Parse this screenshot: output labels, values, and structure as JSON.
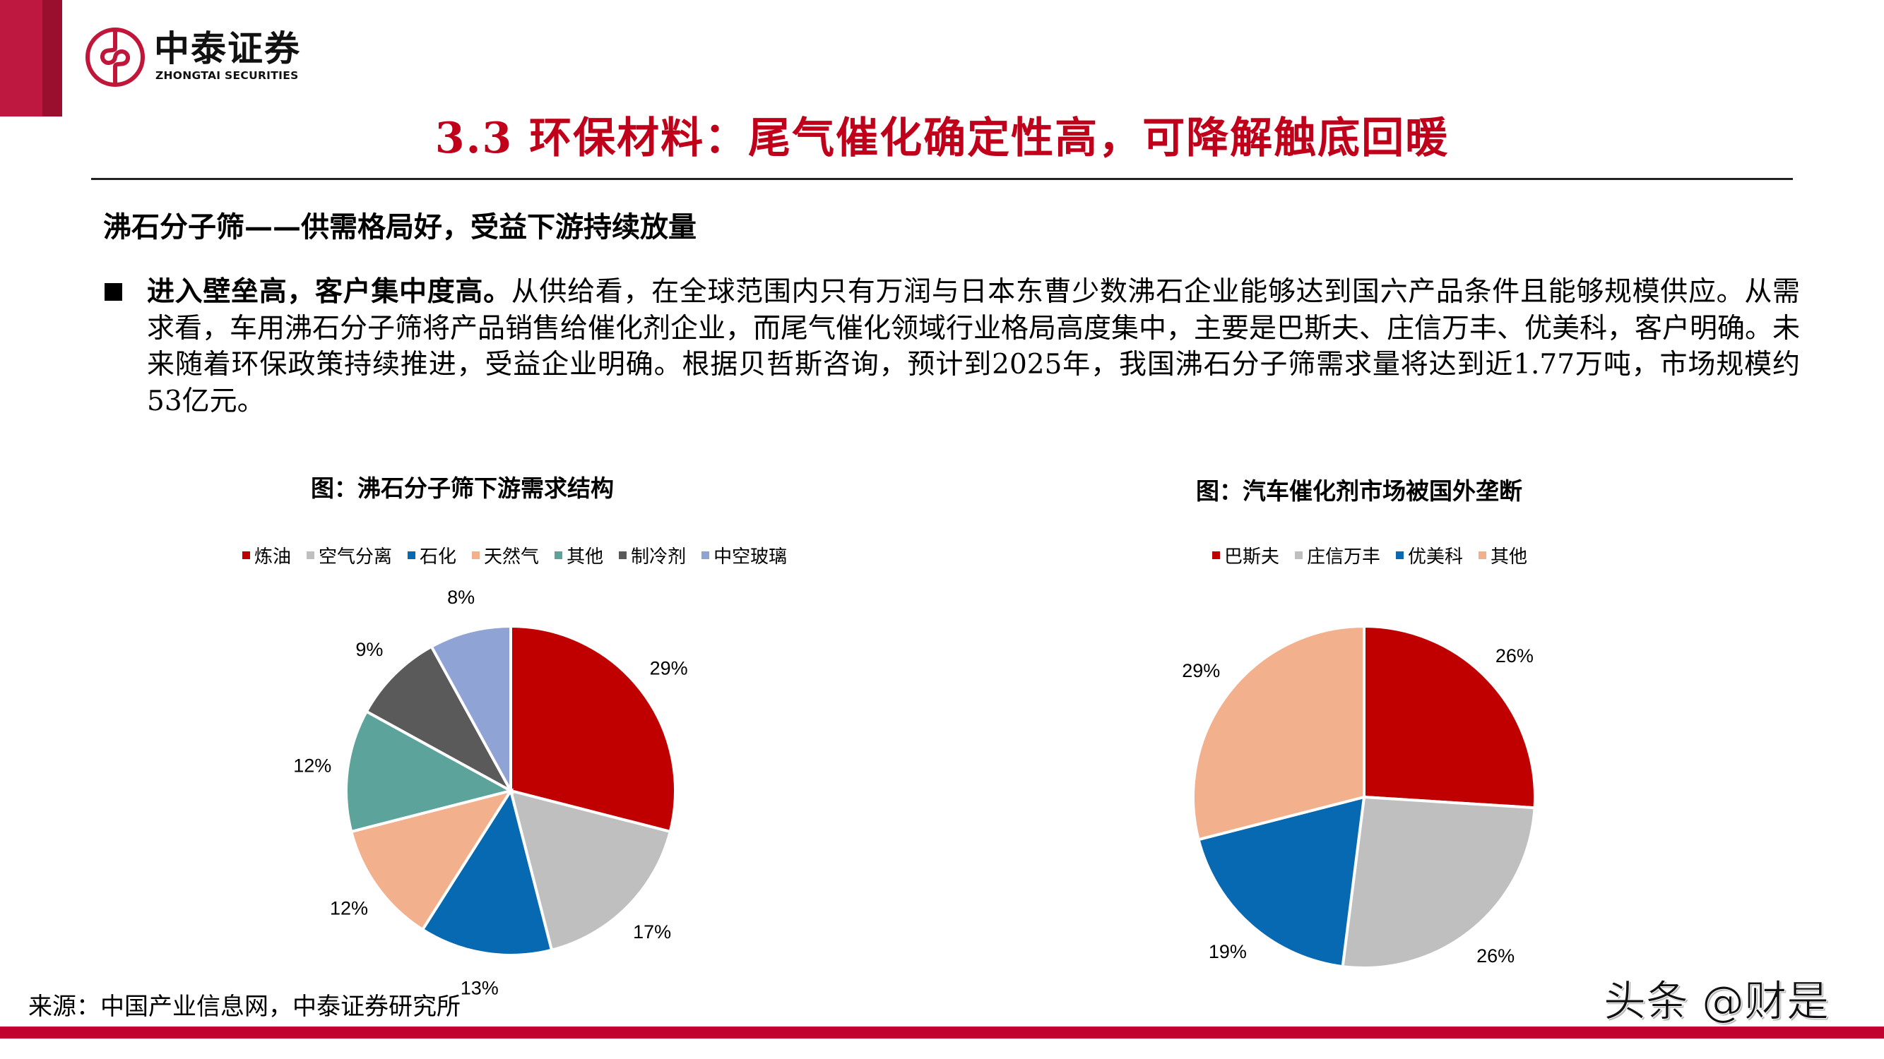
{
  "brand": {
    "name_cn": "中泰证券",
    "name_en": "ZHONGTAI SECURITIES",
    "colors": {
      "primary": "#BE1840",
      "dark": "#9A0E2E",
      "logo": "#C0163A"
    }
  },
  "page": {
    "title": "3.3 环保材料：尾气催化确定性高，可降解触底回暖",
    "title_color": "#C0001A",
    "subtitle": "沸石分子筛——供需格局好，受益下游持续放量",
    "bullet": {
      "lead": "进入壁垒高，客户集中度高。",
      "text": "从供给看，在全球范围内只有万润与日本东曹少数沸石企业能够达到国六产品条件且能够规模供应。从需求看，车用沸石分子筛将产品销售给催化剂企业，而尾气催化领域行业格局高度集中，主要是巴斯夫、庄信万丰、优美科，客户明确。未来随着环保政策持续推进，受益企业明确。根据贝哲斯咨询，预计到2025年，我国沸石分子筛需求量将达到近1.77万吨，市场规模约53亿元。"
    },
    "source": "来源：中国产业信息网，中泰证券研究所",
    "watermark": "头条 @财是"
  },
  "chart_data": [
    {
      "type": "pie",
      "title": "图：沸石分子筛下游需求结构",
      "categories": [
        "炼油",
        "空气分离",
        "石化",
        "天然气",
        "其他",
        "制冷剂",
        "中空玻璃"
      ],
      "values": [
        29,
        17,
        13,
        12,
        12,
        9,
        8
      ],
      "labels": [
        "29%",
        "17%",
        "13%",
        "12%",
        "12%",
        "9%",
        "8%"
      ],
      "colors": [
        "#C00000",
        "#BFBFBF",
        "#0769B1",
        "#F2B08C",
        "#5BA39B",
        "#5A5A5A",
        "#8FA3D4"
      ],
      "unit": "%",
      "legend_position": "top",
      "start_angle": "12 o'clock, clockwise"
    },
    {
      "type": "pie",
      "title": "图：汽车催化剂市场被国外垄断",
      "categories": [
        "巴斯夫",
        "庄信万丰",
        "优美科",
        "其他"
      ],
      "values": [
        26,
        26,
        19,
        29
      ],
      "labels": [
        "26%",
        "26%",
        "19%",
        "29%"
      ],
      "colors": [
        "#C00000",
        "#BFBFBF",
        "#0769B1",
        "#F2B08C"
      ],
      "unit": "%",
      "legend_position": "top",
      "start_angle": "12 o'clock, clockwise"
    }
  ]
}
